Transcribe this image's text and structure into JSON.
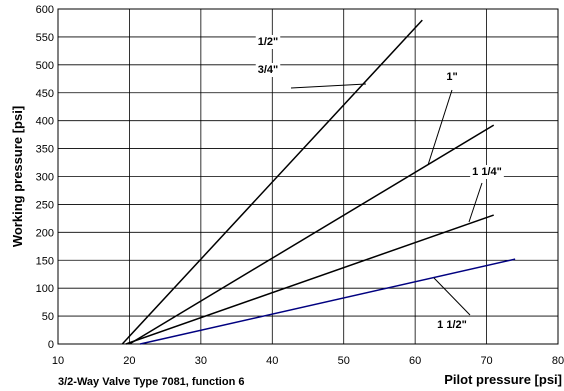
{
  "chart_data": {
    "type": "line",
    "xlabel": "Pilot pressure [psi]",
    "ylabel": "Working pressure [psi]",
    "caption": "3/2-Way Valve Type 7081,  function 6",
    "xlim": [
      10,
      80
    ],
    "ylim": [
      0,
      600
    ],
    "x_ticks": [
      10,
      20,
      30,
      40,
      50,
      60,
      70,
      80
    ],
    "y_ticks": [
      0,
      50,
      100,
      150,
      200,
      250,
      300,
      350,
      400,
      450,
      500,
      550,
      600
    ],
    "grid": true,
    "series": [
      {
        "label_lines": [
          "1/2\"",
          "3/4\""
        ],
        "color": "#000000",
        "points": [
          [
            19,
            0
          ],
          [
            61,
            580
          ]
        ]
      },
      {
        "label_lines": [
          "1\""
        ],
        "color": "#000000",
        "points": [
          [
            20,
            0
          ],
          [
            71,
            392
          ]
        ]
      },
      {
        "label_lines": [
          "1 1/4\""
        ],
        "color": "#000000",
        "points": [
          [
            19.5,
            0
          ],
          [
            71,
            231
          ]
        ]
      },
      {
        "label_lines": [
          "1 1/2\""
        ],
        "color": "#000080",
        "points": [
          [
            21.5,
            0
          ],
          [
            74,
            152
          ]
        ]
      }
    ]
  }
}
